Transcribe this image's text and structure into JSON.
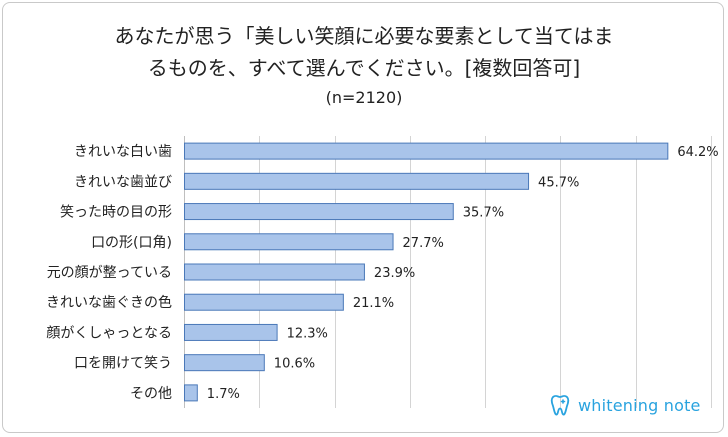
{
  "chart_data": {
    "type": "bar",
    "orientation": "horizontal",
    "title": "あなたが思う「美しい笑顔に必要な要素として当てはまるものを、すべて選んでください。[複数回答可]",
    "title_line1": "あなたが思う「美しい笑顔に必要な要素として当てはま",
    "title_line2": "るものを、すべて選んでください。[複数回答可]",
    "subtitle": "(n=2120)",
    "categories": [
      "きれいな白い歯",
      "きれいな歯並び",
      "笑った時の目の形",
      "口の形(口角)",
      "元の顔が整っている",
      "きれいな歯ぐきの色",
      "顔がくしゃっとなる",
      "口を開けて笑う",
      "その他"
    ],
    "values": [
      64.2,
      45.7,
      35.7,
      27.7,
      23.9,
      21.1,
      12.3,
      10.6,
      1.7
    ],
    "value_labels": [
      "64.2%",
      "45.7%",
      "35.7%",
      "27.7%",
      "23.9%",
      "21.1%",
      "12.3%",
      "10.6%",
      "1.7%"
    ],
    "xlim": [
      0,
      70
    ],
    "grid": "vertical",
    "bar_fill": "#a9c4ea",
    "bar_stroke": "#4a78b8",
    "grid_color": "#d4d4d4"
  },
  "logo": {
    "text": "whitening note",
    "icon": "tooth-icon",
    "color": "#29a3df"
  }
}
